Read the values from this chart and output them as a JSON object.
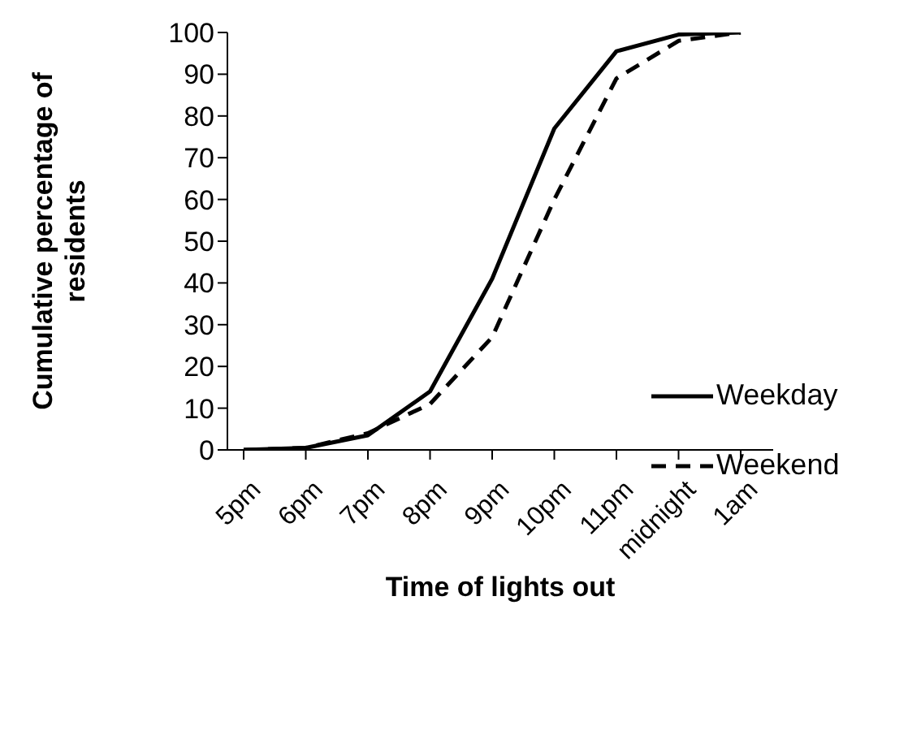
{
  "chart_data": {
    "type": "line",
    "xlabel": "Time of lights out",
    "ylabel": "Cumulative percentage of residents",
    "categories": [
      "5pm",
      "6pm",
      "7pm",
      "8pm",
      "9pm",
      "10pm",
      "11pm",
      "midnight",
      "1am"
    ],
    "series": [
      {
        "name": "Weekday",
        "color": "#000000",
        "line_style": "solid",
        "values": [
          0,
          0.5,
          3.5,
          14,
          41,
          77,
          95.5,
          99.5,
          100
        ]
      },
      {
        "name": "Weekend",
        "color": "#000000",
        "line_style": "dashed",
        "values": [
          0,
          0.5,
          4,
          11,
          27,
          60,
          89,
          98,
          100
        ]
      }
    ],
    "ylim": [
      0,
      100
    ],
    "yticks": [
      0,
      10,
      20,
      30,
      40,
      50,
      60,
      70,
      80,
      90,
      100
    ],
    "grid": false,
    "legend": "right",
    "marker": "none"
  }
}
